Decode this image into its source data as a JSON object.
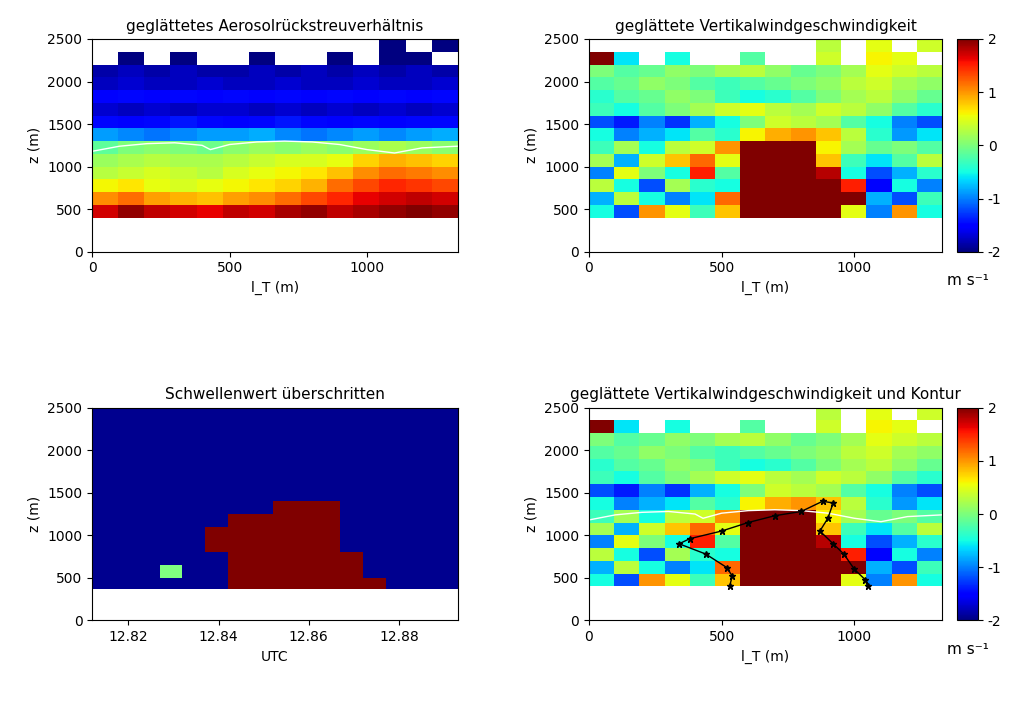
{
  "chart_data": [
    {
      "type": "heatmap",
      "title": "geglättetes Aerosolrückstreuverhältnis",
      "x_label": "l_T (m)",
      "y_label": "z (m)",
      "xlim": [
        0,
        1330
      ],
      "ylim": [
        0,
        2500
      ],
      "xticks": [
        0,
        500,
        1000
      ],
      "yticks": [
        0,
        500,
        1000,
        1500,
        2000,
        2500
      ],
      "color": "jet",
      "x_edges": [
        0,
        95,
        190,
        285,
        380,
        475,
        570,
        665,
        760,
        855,
        950,
        1045,
        1140,
        1235,
        1330
      ],
      "z_edges": [
        400,
        550,
        700,
        850,
        1000,
        1150,
        1300,
        1450,
        1600,
        1750,
        1900,
        2050,
        2200,
        2350,
        2500
      ],
      "cells": [
        [
          5.5,
          5.8,
          5.6,
          5.5,
          5.4,
          5.6,
          5.5,
          5.7,
          5.8,
          5.6,
          5.7,
          5.8,
          5.9,
          5.8
        ],
        [
          4.6,
          4.8,
          4.5,
          4.4,
          4.3,
          4.5,
          4.6,
          4.8,
          5.0,
          5.2,
          5.4,
          5.5,
          5.6,
          5.5
        ],
        [
          4.0,
          4.1,
          3.9,
          3.8,
          3.9,
          4.0,
          4.1,
          4.2,
          4.4,
          4.8,
          5.0,
          5.2,
          5.1,
          5.0
        ],
        [
          3.6,
          3.7,
          3.8,
          3.7,
          3.6,
          3.8,
          3.9,
          4.0,
          4.1,
          4.3,
          4.6,
          4.8,
          4.7,
          4.6
        ],
        [
          3.4,
          3.5,
          3.6,
          3.5,
          3.5,
          3.6,
          3.7,
          3.8,
          3.8,
          3.9,
          4.2,
          4.4,
          4.3,
          4.2
        ],
        [
          3.0,
          3.2,
          3.3,
          3.2,
          3.1,
          3.3,
          3.4,
          3.3,
          3.4,
          3.3,
          3.4,
          3.5,
          3.4,
          3.3
        ],
        [
          2.0,
          1.9,
          1.8,
          1.9,
          2.0,
          2.0,
          2.1,
          1.9,
          1.8,
          1.9,
          2.0,
          1.9,
          2.0,
          2.1
        ],
        [
          1.2,
          1.1,
          1.2,
          1.3,
          1.2,
          1.1,
          1.2,
          1.3,
          1.2,
          1.1,
          1.2,
          1.1,
          1.2,
          1.2
        ],
        [
          0.9,
          0.8,
          0.9,
          0.8,
          0.9,
          0.9,
          0.8,
          0.9,
          0.8,
          0.9,
          0.8,
          0.9,
          0.8,
          0.9
        ],
        [
          1.1,
          1.2,
          1.1,
          1.2,
          1.1,
          1.2,
          1.1,
          1.2,
          1.1,
          1.2,
          1.1,
          1.2,
          1.1,
          1.2
        ],
        [
          0.8,
          0.9,
          0.8,
          0.8,
          0.9,
          0.8,
          0.8,
          0.9,
          0.8,
          0.8,
          0.9,
          0.8,
          0.8,
          0.9
        ],
        [
          0.7,
          0.8,
          0.7,
          0.8,
          0.7,
          0.7,
          0.8,
          0.7,
          0.8,
          0.7,
          0.8,
          0.7,
          0.8,
          0.7
        ],
        [
          null,
          0.5,
          null,
          0.5,
          null,
          null,
          0.5,
          null,
          null,
          0.5,
          null,
          0.5,
          0.5,
          null
        ],
        [
          null,
          null,
          null,
          null,
          null,
          null,
          null,
          null,
          null,
          null,
          null,
          0.5,
          null,
          0.5
        ]
      ],
      "series": [
        {
          "type": "line",
          "color": "white",
          "x": [
            0,
            100,
            200,
            300,
            400,
            430,
            500,
            600,
            700,
            800,
            900,
            1000,
            1100,
            1200,
            1330
          ],
          "values": [
            1180,
            1240,
            1270,
            1280,
            1250,
            1200,
            1260,
            1290,
            1300,
            1290,
            1260,
            1200,
            1160,
            1220,
            1240
          ]
        }
      ]
    },
    {
      "type": "heatmap",
      "title": "geglättete Vertikalwindgeschwindigkeit",
      "x_label": "l_T (m)",
      "y_label": "z (m)",
      "xlim": [
        0,
        1330
      ],
      "ylim": [
        0,
        2500
      ],
      "xticks": [
        0,
        500,
        1000
      ],
      "yticks": [
        0,
        500,
        1000,
        1500,
        2000,
        2500
      ],
      "color": "jet",
      "colorbar": {
        "range": [
          -2,
          2
        ],
        "ticks": [
          -2,
          -1,
          0,
          1,
          2
        ],
        "label": "m s⁻¹"
      },
      "x_edges": [
        0,
        95,
        190,
        285,
        380,
        475,
        570,
        665,
        760,
        855,
        950,
        1045,
        1140,
        1235,
        1330
      ],
      "z_edges": [
        400,
        550,
        700,
        850,
        1000,
        1150,
        1300,
        1450,
        1600,
        1750,
        1900,
        2050,
        2200,
        2350,
        2500
      ],
      "cells": [
        [
          -0.5,
          -1.2,
          1.0,
          0.5,
          -0.3,
          0.8,
          2.5,
          2.5,
          2.5,
          2.5,
          0.5,
          -1.0,
          1.0,
          -0.5
        ],
        [
          -0.8,
          0.3,
          -0.5,
          -1.0,
          -0.6,
          1.2,
          2.5,
          2.5,
          2.5,
          2.5,
          2.0,
          -0.8,
          -1.2,
          -0.3
        ],
        [
          0.3,
          -0.5,
          -1.2,
          0.2,
          -0.4,
          -0.5,
          2.5,
          2.5,
          2.5,
          2.5,
          1.5,
          -1.5,
          -0.5,
          -1.0
        ],
        [
          -1.0,
          0.5,
          0.0,
          -0.5,
          1.5,
          -0.2,
          2.5,
          2.5,
          2.5,
          1.8,
          -0.5,
          -1.2,
          -0.8,
          -0.4
        ],
        [
          0.2,
          -0.8,
          0.4,
          0.8,
          1.2,
          0.5,
          2.5,
          2.5,
          2.5,
          0.8,
          -0.3,
          -0.6,
          -0.2,
          0.3
        ],
        [
          -0.3,
          0.2,
          -0.5,
          0.3,
          0.4,
          1.0,
          2.5,
          2.2,
          2.0,
          0.6,
          0.2,
          -0.1,
          0.0,
          -0.2
        ],
        [
          -0.5,
          -1.0,
          -0.8,
          -0.6,
          -0.2,
          -0.4,
          0.6,
          0.9,
          1.0,
          0.8,
          0.3,
          -0.4,
          -0.9,
          -0.6
        ],
        [
          -1.2,
          -1.4,
          -1.0,
          -1.3,
          -0.8,
          -0.5,
          0.0,
          0.4,
          0.3,
          0.2,
          -0.2,
          -0.5,
          -1.0,
          -1.2
        ],
        [
          -0.3,
          -0.5,
          -0.2,
          0.0,
          0.2,
          0.4,
          0.5,
          0.3,
          0.2,
          0.4,
          0.3,
          0.1,
          -0.2,
          -0.4
        ],
        [
          -0.4,
          -0.2,
          -0.1,
          0.1,
          0.0,
          -0.3,
          -0.5,
          -0.4,
          -0.2,
          0.0,
          0.2,
          0.3,
          0.1,
          -0.1
        ],
        [
          -0.2,
          -0.1,
          0.1,
          0.0,
          -0.2,
          -0.3,
          -0.2,
          -0.1,
          0.0,
          0.1,
          0.3,
          0.4,
          0.2,
          0.1
        ],
        [
          0.0,
          -0.2,
          -0.1,
          0.1,
          0.0,
          0.2,
          0.3,
          0.1,
          -0.1,
          0.0,
          0.2,
          0.5,
          0.4,
          0.3
        ],
        [
          2.5,
          -0.6,
          null,
          -0.5,
          null,
          null,
          -0.2,
          null,
          null,
          0.4,
          null,
          0.6,
          0.5,
          null
        ],
        [
          null,
          null,
          null,
          null,
          null,
          null,
          null,
          null,
          null,
          0.3,
          null,
          0.5,
          null,
          0.4
        ]
      ]
    },
    {
      "type": "heatmap",
      "title": "Schwellenwert überschritten",
      "x_label": "UTC",
      "y_label": "z (m)",
      "xlim": [
        12.812,
        12.893
      ],
      "ylim": [
        0,
        2500
      ],
      "xticks": [
        12.82,
        12.84,
        12.86,
        12.88
      ],
      "yticks": [
        0,
        500,
        1000,
        1500,
        2000,
        2500
      ],
      "colors": [
        "#00008f",
        "#800000",
        "#80ff80"
      ],
      "x_edges": [
        12.812,
        12.817,
        12.822,
        12.827,
        12.832,
        12.837,
        12.842,
        12.847,
        12.852,
        12.857,
        12.862,
        12.867,
        12.872,
        12.877,
        12.882,
        12.887,
        12.893
      ],
      "z_edges": [
        370,
        500,
        650,
        800,
        950,
        1100,
        1250,
        1400,
        1550,
        1700,
        1850,
        2000,
        2150,
        2300,
        2500
      ],
      "cells": [
        [
          0,
          0,
          0,
          0,
          0,
          0,
          1,
          1,
          1,
          1,
          1,
          1,
          1,
          0,
          0,
          0
        ],
        [
          0,
          0,
          0,
          2,
          0,
          0,
          1,
          1,
          1,
          1,
          1,
          1,
          0,
          0,
          0,
          0
        ],
        [
          0,
          0,
          0,
          0,
          0,
          0,
          1,
          1,
          1,
          1,
          1,
          1,
          0,
          0,
          0,
          0
        ],
        [
          0,
          0,
          0,
          0,
          0,
          1,
          1,
          1,
          1,
          1,
          1,
          0,
          0,
          0,
          0,
          0
        ],
        [
          0,
          0,
          0,
          0,
          0,
          1,
          1,
          1,
          1,
          1,
          1,
          0,
          0,
          0,
          0,
          0
        ],
        [
          0,
          0,
          0,
          0,
          0,
          0,
          1,
          1,
          1,
          1,
          1,
          0,
          0,
          0,
          0,
          0
        ],
        [
          0,
          0,
          0,
          0,
          0,
          0,
          0,
          0,
          1,
          1,
          1,
          0,
          0,
          0,
          0,
          0
        ],
        [
          0,
          0,
          0,
          0,
          0,
          0,
          0,
          0,
          0,
          0,
          0,
          0,
          0,
          0,
          0,
          0
        ],
        [
          0,
          0,
          0,
          0,
          0,
          0,
          0,
          0,
          0,
          0,
          0,
          0,
          0,
          0,
          0,
          0
        ],
        [
          0,
          0,
          0,
          0,
          0,
          0,
          0,
          0,
          0,
          0,
          0,
          0,
          0,
          0,
          0,
          0
        ],
        [
          0,
          0,
          0,
          0,
          0,
          0,
          0,
          0,
          0,
          0,
          0,
          0,
          0,
          0,
          0,
          0
        ],
        [
          0,
          0,
          0,
          0,
          0,
          0,
          0,
          0,
          0,
          0,
          0,
          0,
          0,
          0,
          0,
          0
        ],
        [
          0,
          0,
          0,
          0,
          0,
          0,
          0,
          0,
          0,
          0,
          0,
          0,
          0,
          0,
          0,
          0
        ],
        [
          0,
          0,
          0,
          0,
          0,
          0,
          0,
          0,
          0,
          0,
          0,
          0,
          0,
          0,
          0,
          0
        ]
      ]
    },
    {
      "type": "heatmap",
      "title": "geglättete Vertikalwindgeschwindigkeit und Kontur",
      "x_label": "l_T (m)",
      "y_label": "z (m)",
      "xlim": [
        0,
        1330
      ],
      "ylim": [
        0,
        2500
      ],
      "xticks": [
        0,
        500,
        1000
      ],
      "yticks": [
        0,
        500,
        1000,
        1500,
        2000,
        2500
      ],
      "color": "jet",
      "colorbar": {
        "range": [
          -2,
          2
        ],
        "ticks": [
          -2,
          -1,
          0,
          1,
          2
        ],
        "label": "m s⁻¹"
      },
      "x_edges": [
        0,
        95,
        190,
        285,
        380,
        475,
        570,
        665,
        760,
        855,
        950,
        1045,
        1140,
        1235,
        1330
      ],
      "z_edges": [
        400,
        550,
        700,
        850,
        1000,
        1150,
        1300,
        1450,
        1600,
        1750,
        1900,
        2050,
        2200,
        2350,
        2500
      ],
      "cells": [
        [
          -0.5,
          -1.2,
          1.0,
          0.5,
          -0.3,
          0.8,
          2.5,
          2.5,
          2.5,
          2.5,
          0.5,
          -1.0,
          1.0,
          -0.5
        ],
        [
          -0.8,
          0.3,
          -0.5,
          -1.0,
          -0.6,
          1.2,
          2.5,
          2.5,
          2.5,
          2.5,
          2.0,
          -0.8,
          -1.2,
          -0.3
        ],
        [
          0.3,
          -0.5,
          -1.2,
          0.2,
          -0.4,
          -0.5,
          2.5,
          2.5,
          2.5,
          2.5,
          1.5,
          -1.5,
          -0.5,
          -1.0
        ],
        [
          -1.0,
          0.5,
          0.0,
          -0.5,
          1.5,
          -0.2,
          2.5,
          2.5,
          2.5,
          1.8,
          -0.5,
          -1.2,
          -0.8,
          -0.4
        ],
        [
          0.2,
          -0.8,
          0.4,
          0.8,
          1.2,
          0.5,
          2.5,
          2.5,
          2.5,
          0.8,
          -0.3,
          -0.6,
          -0.2,
          0.3
        ],
        [
          -0.3,
          0.2,
          -0.5,
          0.3,
          0.4,
          1.0,
          2.5,
          2.2,
          2.0,
          0.6,
          0.2,
          -0.1,
          0.0,
          -0.2
        ],
        [
          -0.5,
          -1.0,
          -0.8,
          -0.6,
          -0.2,
          -0.4,
          0.6,
          0.9,
          1.0,
          0.8,
          0.3,
          -0.4,
          -0.9,
          -0.6
        ],
        [
          -1.2,
          -1.4,
          -1.0,
          -1.3,
          -0.8,
          -0.5,
          0.0,
          0.4,
          0.3,
          0.2,
          -0.2,
          -0.5,
          -1.0,
          -1.2
        ],
        [
          -0.3,
          -0.5,
          -0.2,
          0.0,
          0.2,
          0.4,
          0.5,
          0.3,
          0.2,
          0.4,
          0.3,
          0.1,
          -0.2,
          -0.4
        ],
        [
          -0.4,
          -0.2,
          -0.1,
          0.1,
          0.0,
          -0.3,
          -0.5,
          -0.4,
          -0.2,
          0.0,
          0.2,
          0.3,
          0.1,
          -0.1
        ],
        [
          -0.2,
          -0.1,
          0.1,
          0.0,
          -0.2,
          -0.3,
          -0.2,
          -0.1,
          0.0,
          0.1,
          0.3,
          0.4,
          0.2,
          0.1
        ],
        [
          0.0,
          -0.2,
          -0.1,
          0.1,
          0.0,
          0.2,
          0.3,
          0.1,
          -0.1,
          0.0,
          0.2,
          0.5,
          0.4,
          0.3
        ],
        [
          2.5,
          -0.6,
          null,
          -0.5,
          null,
          null,
          -0.2,
          null,
          null,
          0.4,
          null,
          0.6,
          0.5,
          null
        ],
        [
          null,
          null,
          null,
          null,
          null,
          null,
          null,
          null,
          null,
          0.3,
          null,
          0.5,
          null,
          0.4
        ]
      ],
      "series": [
        {
          "type": "line",
          "color": "white",
          "x": [
            0,
            100,
            200,
            300,
            400,
            430,
            500,
            600,
            700,
            800,
            900,
            1000,
            1100,
            1200,
            1330
          ],
          "values": [
            1180,
            1240,
            1270,
            1280,
            1250,
            1200,
            1260,
            1290,
            1300,
            1290,
            1260,
            1200,
            1160,
            1220,
            1240
          ]
        },
        {
          "type": "line",
          "color": "black",
          "marker": "asterisk",
          "x": [
            530,
            540,
            520,
            440,
            340,
            380,
            500,
            600,
            700,
            800,
            880,
            920,
            900,
            870,
            920,
            960,
            1000,
            1040,
            1050
          ],
          "values": [
            400,
            520,
            620,
            780,
            900,
            960,
            1050,
            1150,
            1230,
            1280,
            1400,
            1380,
            1200,
            1050,
            900,
            780,
            600,
            480,
            400
          ]
        }
      ]
    }
  ]
}
